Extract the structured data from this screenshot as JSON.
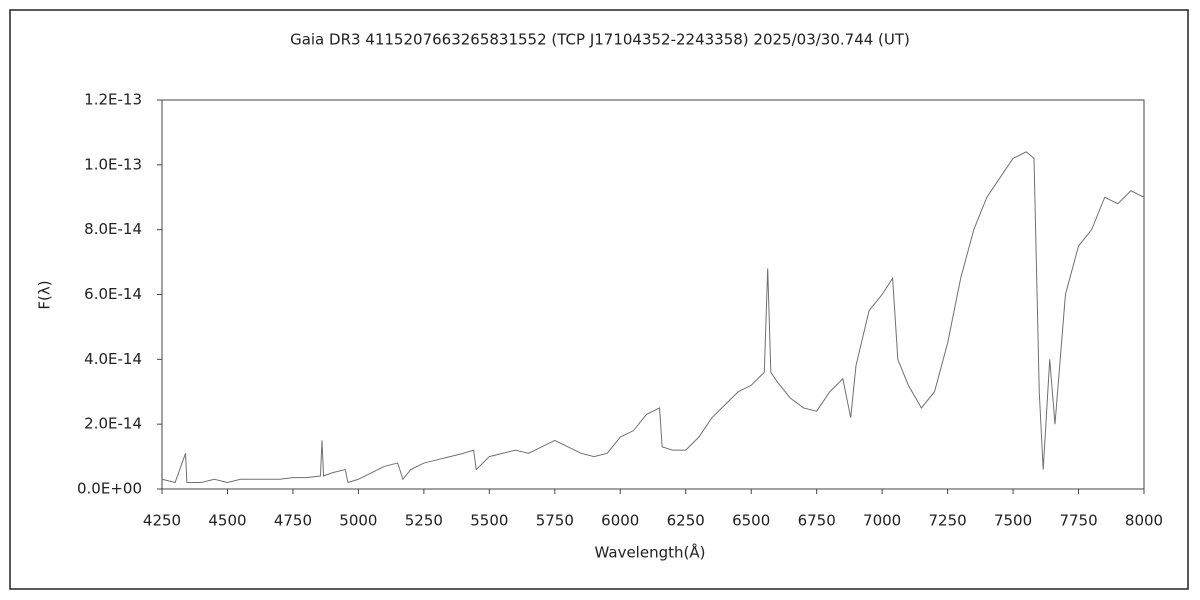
{
  "chart_data": {
    "type": "line",
    "title": "Gaia DR3 4115207663265831552 (TCP J17104352-2243358)    2025/03/30.744 (UT)",
    "x_label": "Wavelength(Å)",
    "y_label": "F(λ)",
    "xlim": [
      4250,
      8000
    ],
    "xticks": [
      4250,
      4500,
      4750,
      5000,
      5250,
      5500,
      5750,
      6000,
      6250,
      6500,
      6750,
      7000,
      7250,
      7500,
      7750,
      8000
    ],
    "ylim": [
      0,
      1.2e-13
    ],
    "yticks": [
      {
        "value": 0,
        "label": "0.0E+00"
      },
      {
        "value": 2e-14,
        "label": "2.0E-14"
      },
      {
        "value": 4e-14,
        "label": "4.0E-14"
      },
      {
        "value": 6e-14,
        "label": "6.0E-14"
      },
      {
        "value": 8e-14,
        "label": "8.0E-14"
      },
      {
        "value": 1e-13,
        "label": "1.0E-13"
      },
      {
        "value": 1.2e-13,
        "label": "1.2E-13"
      }
    ],
    "series": [
      {
        "color": "#707070",
        "x": [
          4250,
          4300,
          4340,
          4345,
          4400,
          4450,
          4500,
          4550,
          4600,
          4650,
          4700,
          4750,
          4800,
          4855,
          4861,
          4867,
          4900,
          4950,
          4960,
          5000,
          5050,
          5100,
          5150,
          5170,
          5200,
          5250,
          5300,
          5350,
          5400,
          5440,
          5450,
          5500,
          5550,
          5600,
          5650,
          5700,
          5750,
          5800,
          5850,
          5900,
          5950,
          6000,
          6050,
          6100,
          6150,
          6160,
          6200,
          6250,
          6300,
          6350,
          6400,
          6450,
          6500,
          6550,
          6563,
          6575,
          6600,
          6650,
          6700,
          6750,
          6800,
          6850,
          6880,
          6900,
          6950,
          7000,
          7040,
          7060,
          7100,
          7150,
          7200,
          7250,
          7300,
          7350,
          7400,
          7450,
          7500,
          7550,
          7580,
          7600,
          7615,
          7640,
          7660,
          7700,
          7750,
          7800,
          7850,
          7900,
          7950,
          8000
        ],
        "values": [
          3e-15,
          2e-15,
          1.1e-14,
          2e-15,
          2e-15,
          3e-15,
          2e-15,
          3e-15,
          3e-15,
          3e-15,
          3e-15,
          3.5e-15,
          3.5e-15,
          4e-15,
          1.5e-14,
          4e-15,
          5e-15,
          6e-15,
          2e-15,
          3e-15,
          5e-15,
          7e-15,
          8e-15,
          3e-15,
          6e-15,
          8e-15,
          9e-15,
          1e-14,
          1.1e-14,
          1.2e-14,
          6e-15,
          1e-14,
          1.1e-14,
          1.2e-14,
          1.1e-14,
          1.3e-14,
          1.5e-14,
          1.3e-14,
          1.1e-14,
          1e-14,
          1.1e-14,
          1.6e-14,
          1.8e-14,
          2.3e-14,
          2.5e-14,
          1.3e-14,
          1.2e-14,
          1.2e-14,
          1.6e-14,
          2.2e-14,
          2.6e-14,
          3e-14,
          3.2e-14,
          3.6e-14,
          6.8e-14,
          3.6e-14,
          3.3e-14,
          2.8e-14,
          2.5e-14,
          2.4e-14,
          3e-14,
          3.4e-14,
          2.2e-14,
          3.8e-14,
          5.5e-14,
          6e-14,
          6.5e-14,
          4e-14,
          3.2e-14,
          2.5e-14,
          3e-14,
          4.5e-14,
          6.5e-14,
          8e-14,
          9e-14,
          9.6e-14,
          1.02e-13,
          1.04e-13,
          1.02e-13,
          3e-14,
          6e-15,
          4e-14,
          2e-14,
          6e-14,
          7.5e-14,
          8e-14,
          9e-14,
          8.8e-14,
          9.2e-14,
          9e-14
        ]
      }
    ]
  }
}
